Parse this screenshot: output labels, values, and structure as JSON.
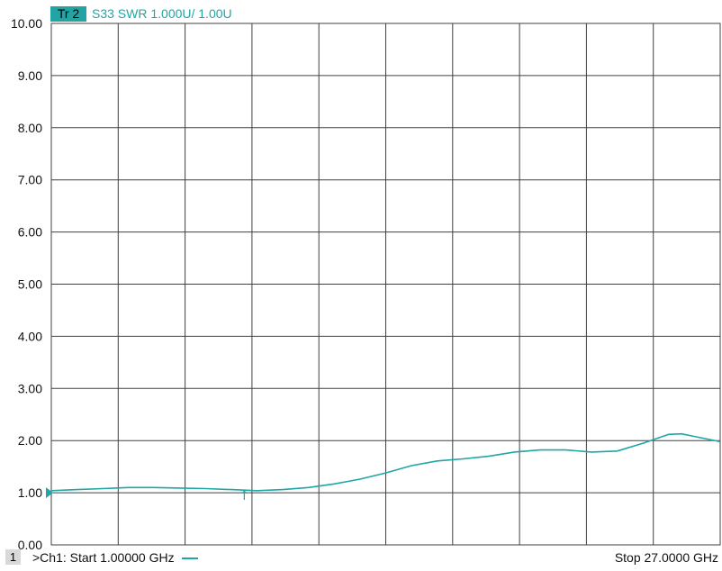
{
  "header": {
    "trace_label": "Tr 2",
    "trace_desc": "S33 SWR 1.000U/  1.00U"
  },
  "footer": {
    "channel_num": "1",
    "channel_info": ">Ch1:  Start  1.00000 GHz",
    "stop_info": "Stop  27.0000 GHz"
  },
  "colors": {
    "trace": "#1fa6a6",
    "badge": "#23a3a3",
    "grid": "#404040"
  },
  "chart_data": {
    "type": "line",
    "title": "",
    "xlabel": "",
    "ylabel": "",
    "xlim": [
      1.0,
      27.0
    ],
    "ylim": [
      0.0,
      10.0
    ],
    "grid": true,
    "x_divisions": 10,
    "y_ticks": [
      "0.00",
      "1.00",
      "2.00",
      "3.00",
      "4.00",
      "5.00",
      "6.00",
      "7.00",
      "8.00",
      "9.00",
      "10.00"
    ],
    "reference_level": 1.0,
    "series": [
      {
        "x": [
          1.0,
          2.0,
          3.0,
          4.0,
          5.0,
          6.0,
          7.0,
          8.0,
          9.0,
          10.0,
          11.0,
          12.0,
          13.0,
          14.0,
          15.0,
          16.0,
          17.0,
          18.0,
          19.0,
          20.0,
          21.0,
          22.0,
          23.0,
          24.0,
          25.0,
          25.5,
          26.0,
          27.0
        ],
        "values": [
          1.04,
          1.06,
          1.08,
          1.1,
          1.1,
          1.09,
          1.08,
          1.06,
          1.04,
          1.06,
          1.1,
          1.17,
          1.26,
          1.38,
          1.52,
          1.61,
          1.65,
          1.7,
          1.78,
          1.82,
          1.82,
          1.78,
          1.8,
          1.95,
          2.12,
          2.13,
          2.08,
          1.98
        ]
      }
    ],
    "marker": {
      "x": 8.5,
      "value": 1.05,
      "symbol": "↑"
    }
  }
}
